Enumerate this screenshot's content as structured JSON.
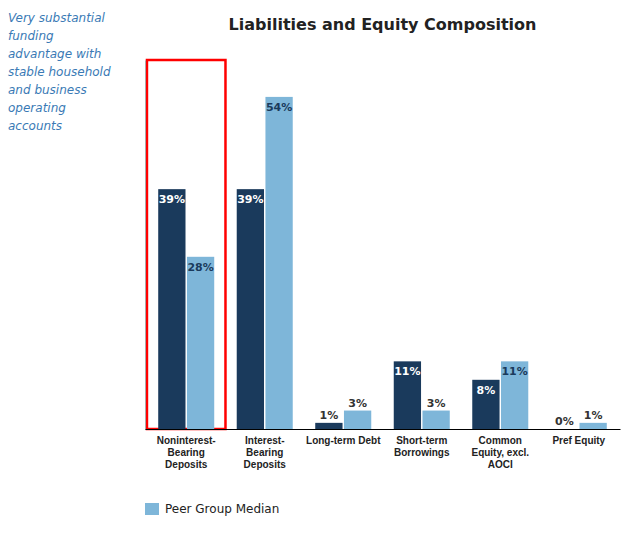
{
  "chart_data": {
    "type": "bar",
    "title": "Liabilities and Equity Composition",
    "annotation": "Very substantial\nfunding\nadvantage with\nstable household\nand business\noperating\naccounts",
    "categories": [
      "Noninterest-\nBearing\nDeposits",
      "Interest-\nBearing\nDeposits",
      "Long-term Debt",
      "Short-term\nBorrowings",
      "Common\nEquity, excl.\nAOCI",
      "Pref Equity"
    ],
    "series": [
      {
        "color": "#1a3a5c",
        "values": [
          39,
          39,
          1,
          11,
          8,
          0
        ],
        "value_labels": [
          "39%",
          "39%",
          "1%",
          "11%",
          "8%",
          "0%"
        ]
      },
      {
        "name": "Peer Group Median",
        "color": "#7eb6d9",
        "values": [
          28,
          54,
          3,
          3,
          11,
          1
        ],
        "value_labels": [
          "28%",
          "54%",
          "3%",
          "3%",
          "11%",
          "1%"
        ]
      }
    ],
    "ylim": [
      0,
      60
    ],
    "data_labels": true,
    "tick_labels": "x",
    "grid": false,
    "legend": "bottom"
  }
}
